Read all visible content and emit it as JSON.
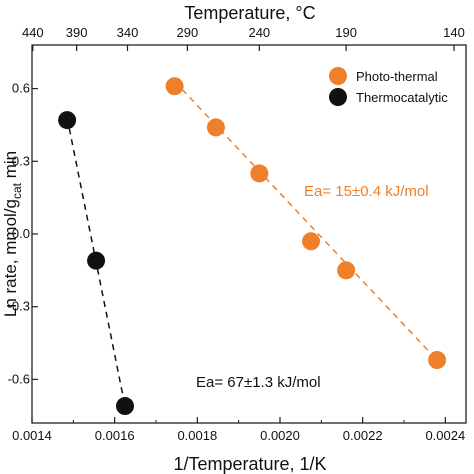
{
  "chart_data": {
    "type": "scatter",
    "xlabel": "1/Temperature, 1/K",
    "ylabel": "Ln rate, mmol/g",
    "ylabel_sub": "cat",
    "ylabel_suffix": " min",
    "top_xlabel": "Temperature, °C",
    "xlim": [
      0.0014,
      0.00245
    ],
    "ylim": [
      -0.78,
      0.78
    ],
    "xticks": [
      {
        "value": 0.0014,
        "label": "0.0014"
      },
      {
        "value": 0.0016,
        "label": "0.0016"
      },
      {
        "value": 0.0018,
        "label": "0.0018"
      },
      {
        "value": 0.002,
        "label": "0.0020"
      },
      {
        "value": 0.0022,
        "label": "0.0022"
      },
      {
        "value": 0.0024,
        "label": "0.0024"
      }
    ],
    "yticks": [
      {
        "value": 0.6,
        "label": "0.6"
      },
      {
        "value": 0.3,
        "label": "0.3"
      },
      {
        "value": 0.0,
        "label": "0.0"
      },
      {
        "value": -0.3,
        "label": "-0.3"
      },
      {
        "value": -0.6,
        "label": "-0.6"
      }
    ],
    "top_ticks": [
      {
        "value": 0.001402,
        "label": "440"
      },
      {
        "value": 0.001508,
        "label": "390"
      },
      {
        "value": 0.001631,
        "label": "340"
      },
      {
        "value": 0.001776,
        "label": "290"
      },
      {
        "value": 0.00195,
        "label": "240"
      },
      {
        "value": 0.00216,
        "label": "190"
      },
      {
        "value": 0.002421,
        "label": "140"
      }
    ],
    "grid": false,
    "legend_position": "top-right",
    "series": [
      {
        "name": "Photo-thermal",
        "color": "#f07f2a",
        "line_style": "dashed",
        "points": [
          {
            "x": 0.001745,
            "y": 0.61
          },
          {
            "x": 0.001845,
            "y": 0.44
          },
          {
            "x": 0.00195,
            "y": 0.25
          },
          {
            "x": 0.002075,
            "y": -0.03
          },
          {
            "x": 0.00216,
            "y": -0.15
          },
          {
            "x": 0.00238,
            "y": -0.52
          }
        ],
        "fit": [
          {
            "x": 0.001745,
            "y": 0.63
          },
          {
            "x": 0.00238,
            "y": -0.52
          }
        ]
      },
      {
        "name": "Thermocatalytic",
        "color": "#111111",
        "line_style": "dashed",
        "points": [
          {
            "x": 0.001485,
            "y": 0.47
          },
          {
            "x": 0.001555,
            "y": -0.11
          },
          {
            "x": 0.001625,
            "y": -0.71
          }
        ],
        "fit": [
          {
            "x": 0.001485,
            "y": 0.48
          },
          {
            "x": 0.001625,
            "y": -0.71
          }
        ]
      }
    ],
    "annotations": [
      {
        "text": "Ea= 15±0.4 kJ/mol",
        "color": "#f07f2a",
        "x": 0.00203,
        "y": 0.16
      },
      {
        "text": "Ea= 67±1.3 kJ/mol",
        "color": "#111111",
        "x": 0.00179,
        "y": -0.65
      }
    ]
  }
}
